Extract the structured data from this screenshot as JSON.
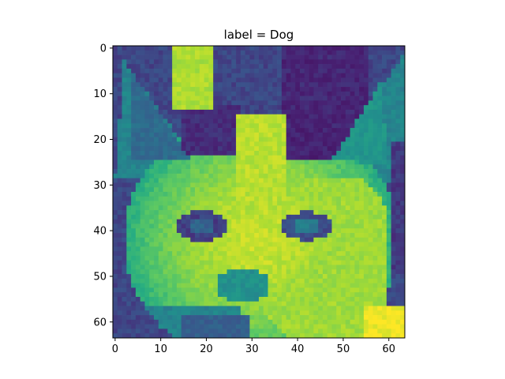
{
  "chart_data": {
    "type": "heatmap",
    "title": "label = Dog",
    "xlabel": "",
    "ylabel": "",
    "colormap": "viridis",
    "image_size": [
      64,
      64
    ],
    "xlim": [
      -0.5,
      63.5
    ],
    "ylim": [
      63.5,
      -0.5
    ],
    "xticks": [
      0,
      10,
      20,
      30,
      40,
      50,
      60
    ],
    "yticks": [
      0,
      10,
      20,
      30,
      40,
      50,
      60
    ],
    "colors": {
      "dark": "#440154",
      "mid_dark": "#3b528b",
      "mid": "#21918c",
      "mid_light": "#5ec962",
      "light": "#fde725"
    }
  }
}
